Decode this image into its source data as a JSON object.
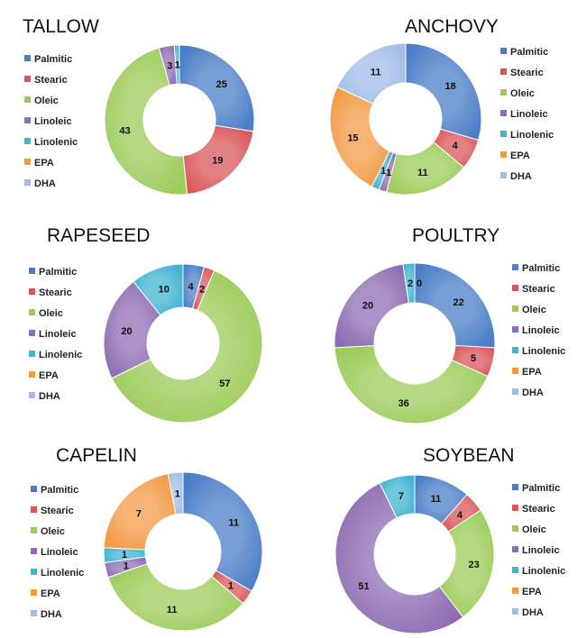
{
  "legend_labels": [
    "Palmitic",
    "Stearic",
    "Oleic",
    "Linoleic",
    "Linolenic",
    "EPA",
    "DHA"
  ],
  "colors": [
    "#4a7ec7",
    "#d9575a",
    "#9ccc5a",
    "#8e6cb3",
    "#40b3d1",
    "#f39a44",
    "#9fbde6"
  ],
  "chart_data": [
    {
      "type": "pie",
      "title": "TALLOW",
      "categories": [
        "Palmitic",
        "Stearic",
        "Oleic",
        "Linoleic",
        "Linolenic",
        "EPA",
        "DHA"
      ],
      "values": [
        25,
        19,
        43,
        3,
        1,
        0,
        0
      ],
      "labels": [
        "25",
        "19",
        "43",
        "3",
        "1",
        "",
        ""
      ]
    },
    {
      "type": "pie",
      "title": "ANCHOVY",
      "categories": [
        "Palmitic",
        "Stearic",
        "Oleic",
        "Linoleic",
        "Linolenic",
        "EPA",
        "DHA"
      ],
      "values": [
        18,
        4,
        11,
        1,
        1,
        15,
        11
      ],
      "labels": [
        "18",
        "4",
        "11",
        "1",
        "1",
        "15",
        "11"
      ]
    },
    {
      "type": "pie",
      "title": "RAPESEED",
      "categories": [
        "Palmitic",
        "Stearic",
        "Oleic",
        "Linoleic",
        "Linolenic",
        "EPA",
        "DHA"
      ],
      "values": [
        4,
        2,
        57,
        20,
        10,
        0,
        0
      ],
      "labels": [
        "4",
        "2",
        "57",
        "20",
        "10",
        "",
        ""
      ]
    },
    {
      "type": "pie",
      "title": "POULTRY",
      "categories": [
        "Palmitic",
        "Stearic",
        "Oleic",
        "Linoleic",
        "Linolenic",
        "EPA",
        "DHA"
      ],
      "values": [
        22,
        5,
        36,
        20,
        2,
        0,
        0
      ],
      "labels": [
        "22",
        "5",
        "36",
        "20",
        "2",
        "0",
        ""
      ]
    },
    {
      "type": "pie",
      "title": "CAPELIN",
      "categories": [
        "Palmitic",
        "Stearic",
        "Oleic",
        "Linoleic",
        "Linolenic",
        "EPA",
        "DHA"
      ],
      "values": [
        11,
        1,
        11,
        1,
        1,
        7,
        1
      ],
      "labels": [
        "11",
        "1",
        "11",
        "1",
        "1",
        "7",
        "1"
      ]
    },
    {
      "type": "pie",
      "title": "SOYBEAN",
      "categories": [
        "Palmitic",
        "Stearic",
        "Oleic",
        "Linoleic",
        "Linolenic",
        "EPA",
        "DHA"
      ],
      "values": [
        11,
        4,
        23,
        51,
        7,
        0,
        0
      ],
      "labels": [
        "11",
        "4",
        "23",
        "51",
        "7",
        "",
        ""
      ]
    }
  ]
}
